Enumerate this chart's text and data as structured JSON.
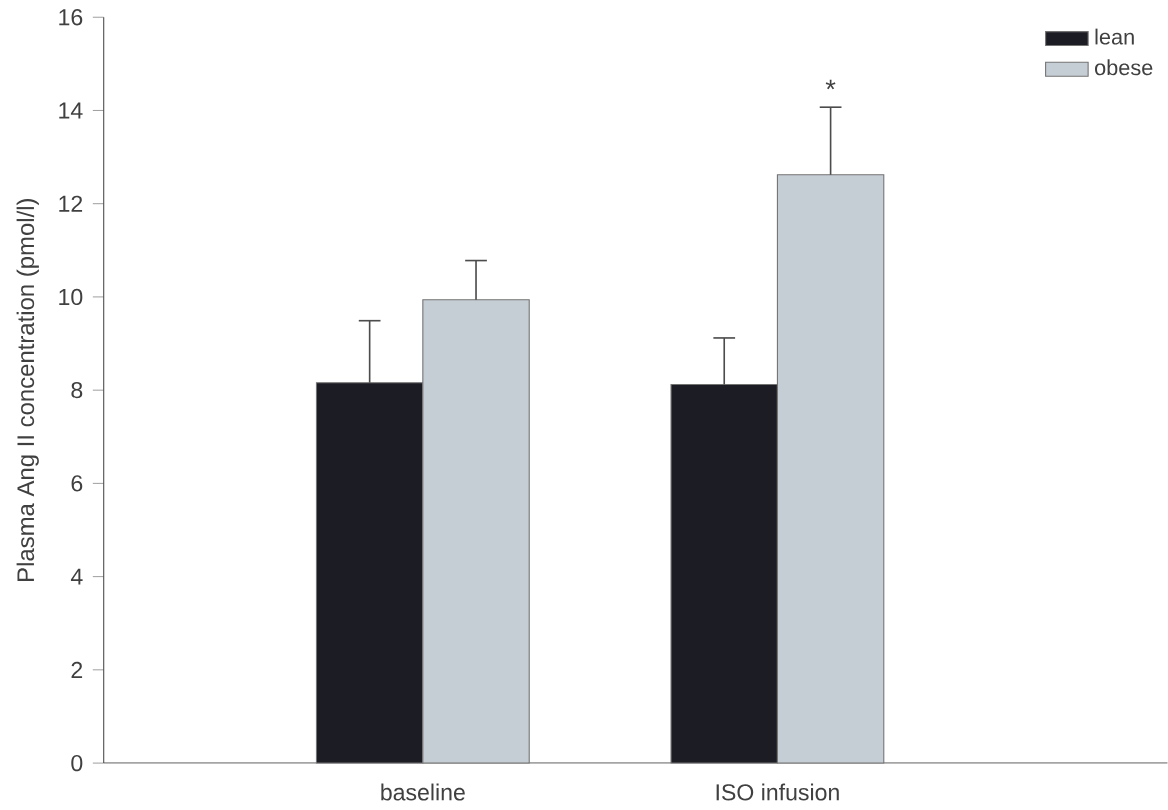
{
  "chart_data": {
    "type": "bar",
    "ylabel": "Plasma Ang II concentration (pmol/l)",
    "categories": [
      "baseline",
      "ISO infusion"
    ],
    "series": [
      {
        "name": "lean",
        "color": "#1c1c24",
        "values": [
          8.16,
          8.12
        ],
        "errors": [
          1.33,
          1.0
        ]
      },
      {
        "name": "obese",
        "color": "#c6ced5",
        "values": [
          9.94,
          12.62
        ],
        "errors": [
          0.84,
          1.45
        ]
      }
    ],
    "ylim": [
      0,
      16
    ],
    "yticks": [
      0,
      2,
      4,
      6,
      8,
      10,
      12,
      14,
      16
    ],
    "legend": "top right",
    "grid": false,
    "annotations": [
      "*"
    ]
  }
}
